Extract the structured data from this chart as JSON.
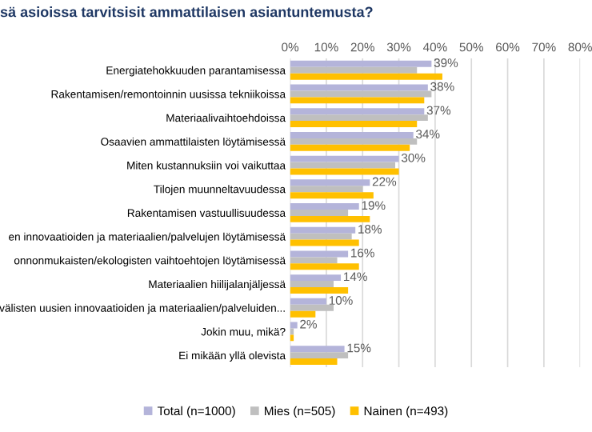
{
  "chart_data": {
    "type": "bar",
    "orientation": "horizontal",
    "title": "sä asioissa tarvitsisit ammattilaisen asiantuntemusta?",
    "categories": [
      "Energiatehokkuuden parantamisessa",
      "Rakentamisen/remontoinnin uusissa tekniikoissa",
      "Materiaalivaihtoehdoissa",
      "Osaavien ammattilaisten löytämisessä",
      "Miten kustannuksiin voi vaikuttaa",
      "Tilojen muunneltavuudessa",
      "Rakentamisen vastuullisuudessa",
      "en innovaatioiden ja materiaalien/palvelujen löytämisessä",
      "onnonmukaisten/ekologisten vaihtoehtojen löytämisessä",
      "Materiaalien hiilijalanjäljessä",
      "välisten uusien innovaatioiden ja materiaalien/palveluiden...",
      "Jokin muu, mikä?",
      "Ei mikään yllä olevista"
    ],
    "series": [
      {
        "name": "Total (n=1000)",
        "color": "#b4b4da",
        "values": [
          39,
          38,
          37,
          34,
          30,
          22,
          19,
          18,
          16,
          14,
          10,
          2,
          15
        ],
        "value_labels": [
          "39%",
          "38%",
          "37%",
          "34%",
          "30%",
          "22%",
          "19%",
          "18%",
          "16%",
          "14%",
          "10%",
          "2%",
          "15%"
        ]
      },
      {
        "name": "Mies (n=505)",
        "color": "#bfbfbf",
        "values": [
          35,
          39,
          38,
          35,
          29,
          20,
          16,
          17,
          13,
          12,
          12,
          1,
          16
        ]
      },
      {
        "name": "Nainen (n=493)",
        "color": "#ffc000",
        "values": [
          42,
          37,
          35,
          33,
          30,
          23,
          22,
          19,
          19,
          16,
          7,
          1,
          13
        ]
      }
    ],
    "xlim": [
      0,
      80
    ],
    "xticks": [
      {
        "value": 0,
        "label": "0%"
      },
      {
        "value": 10,
        "label": "10%"
      },
      {
        "value": 20,
        "label": "20%"
      },
      {
        "value": 30,
        "label": "30%"
      },
      {
        "value": 40,
        "label": "40%"
      },
      {
        "value": 50,
        "label": "50%"
      },
      {
        "value": 60,
        "label": "60%"
      },
      {
        "value": 70,
        "label": "70%"
      },
      {
        "value": 80,
        "label": "80%"
      }
    ],
    "grid": "x",
    "legend": "bottom"
  }
}
